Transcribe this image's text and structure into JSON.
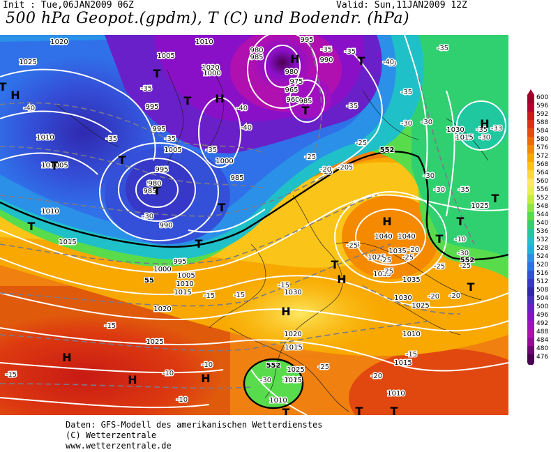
{
  "header": {
    "init": "Init : Tue,06JAN2009 06Z",
    "valid": "Valid: Sun,11JAN2009 12Z",
    "title": "500 hPa Geopot.(gpdm), T (C) und Bodendr. (hPa)"
  },
  "colorbar": {
    "labels": [
      "600",
      "596",
      "592",
      "588",
      "584",
      "580",
      "576",
      "572",
      "568",
      "564",
      "560",
      "556",
      "552",
      "548",
      "544",
      "540",
      "536",
      "532",
      "528",
      "524",
      "520",
      "516",
      "512",
      "508",
      "504",
      "500",
      "496",
      "492",
      "488",
      "484",
      "480",
      "476"
    ],
    "colors": [
      "#a0002a",
      "#b80030",
      "#cc1a1a",
      "#dd3010",
      "#e84a08",
      "#f06a00",
      "#f58a00",
      "#f8a800",
      "#fac418",
      "#fcd838",
      "#fde860",
      "#e6f050",
      "#c4ec3a",
      "#90e640",
      "#58dc4c",
      "#30d070",
      "#20c8a0",
      "#20c0c8",
      "#20b0e0",
      "#2a90e8",
      "#3070e8",
      "#3450d8",
      "#3838c8",
      "#3028b0",
      "#4a30c0",
      "#6a20c8",
      "#8a10c8",
      "#a010c0",
      "#b010b0",
      "#9a0a90",
      "#6a0870",
      "#4a0050"
    ]
  },
  "map": {
    "pressure_labels": [
      "1020",
      "1025",
      "1005",
      "1010",
      "1010",
      "1015",
      "1020",
      "1000",
      "995",
      "980",
      "985",
      "995",
      "990",
      "995",
      "980",
      "975",
      "965",
      "960",
      "985",
      "1005",
      "1000",
      "995",
      "990",
      "985",
      "980",
      "985",
      "1010",
      "1005",
      "990",
      "1015",
      "1000",
      "995",
      "1005",
      "1010",
      "1015",
      "1025",
      "1030",
      "1035",
      "1040",
      "1040",
      "1035",
      "1035",
      "1030",
      "1025",
      "1020",
      "1025",
      "1020",
      "1015",
      "1010",
      "1015",
      "1010",
      "1025",
      "1020",
      "1015",
      "1010",
      "1030",
      "1025",
      "1015"
    ],
    "temperature_labels": [
      "-35",
      "-40",
      "-35",
      "-35",
      "-35",
      "-40",
      "-35",
      "-35",
      "-30",
      "-35",
      "-40",
      "-35",
      "-40",
      "-35",
      "-35",
      "-30",
      "-25",
      "-25",
      "-25",
      "-25",
      "-20",
      "-30",
      "-35",
      "-25",
      "-30",
      "-25",
      "-25",
      "-20",
      "-25",
      "-15",
      "-15",
      "-15",
      "-15",
      "-10",
      "-10",
      "-10",
      "-25",
      "-20",
      "-20",
      "-15",
      "-25",
      "-30",
      "-15",
      "-10",
      "-20",
      "-25",
      "-25",
      "-30",
      "-35",
      "-30",
      "-33",
      "-40",
      "-20",
      "-30"
    ],
    "highs": [
      "H",
      "H",
      "H",
      "H",
      "H",
      "H",
      "H",
      "H",
      "H",
      "H"
    ],
    "lows": [
      "T",
      "T",
      "T",
      "T",
      "T",
      "T",
      "T",
      "T",
      "T",
      "T",
      "T",
      "T",
      "T",
      "T",
      "T",
      "T",
      "T",
      "T",
      "T"
    ],
    "isoline_552_label": "552",
    "isoline_552_extra": [
      "552",
      "552",
      "55"
    ]
  },
  "footer": {
    "line1": "Daten: GFS-Modell des amerikanischen Wetterdienstes",
    "line2": "(C) Wetterzentrale",
    "line3": "www.wetterzentrale.de"
  }
}
